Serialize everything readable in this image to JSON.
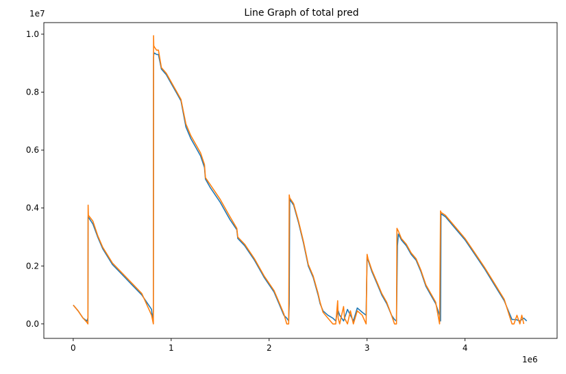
{
  "chart_data": {
    "type": "line",
    "title": "Line Graph of total pred",
    "xlabel": "",
    "ylabel": "",
    "x_offset_label": "1e6",
    "y_offset_label": "1e7",
    "xlim": [
      -300000,
      4940000
    ],
    "ylim": [
      -500000,
      10400000
    ],
    "x_ticks": [
      0,
      1000000,
      2000000,
      3000000,
      4000000
    ],
    "x_tick_labels": [
      "0",
      "1",
      "2",
      "3",
      "4"
    ],
    "y_ticks": [
      0,
      2000000,
      4000000,
      6000000,
      8000000,
      10000000
    ],
    "y_tick_labels": [
      "0.0",
      "0.2",
      "0.4",
      "0.6",
      "0.8",
      "1.0"
    ],
    "grid": false,
    "series": [
      {
        "color": "#1f77b4",
        "x": [
          0,
          50000,
          100000,
          140000,
          150000,
          152000,
          200000,
          250000,
          300000,
          400000,
          500000,
          600000,
          700000,
          800000,
          805000,
          810000,
          818000,
          820000,
          822000,
          830000,
          850000,
          870000,
          900000,
          950000,
          1000000,
          1050000,
          1100000,
          1150000,
          1200000,
          1250000,
          1300000,
          1340000,
          1350000,
          1400000,
          1500000,
          1600000,
          1670000,
          1680000,
          1750000,
          1850000,
          1950000,
          2050000,
          2100000,
          2150000,
          2180000,
          2200000,
          2205000,
          2210000,
          2250000,
          2300000,
          2350000,
          2400000,
          2450000,
          2500000,
          2520000,
          2550000,
          2600000,
          2650000,
          2680000,
          2700000,
          2720000,
          2760000,
          2800000,
          2830000,
          2860000,
          2900000,
          2950000,
          2990000,
          3000000,
          3020000,
          3050000,
          3100000,
          3150000,
          3200000,
          3250000,
          3280000,
          3300000,
          3310000,
          3320000,
          3350000,
          3400000,
          3450000,
          3500000,
          3550000,
          3600000,
          3650000,
          3700000,
          3740000,
          3750000,
          3755000,
          3800000,
          3900000,
          4000000,
          4100000,
          4200000,
          4300000,
          4400000,
          4480000,
          4520000,
          4560000,
          4600000,
          4630000
        ],
        "values": [
          650000,
          450000,
          200000,
          100000,
          200000,
          3700000,
          3450000,
          3000000,
          2600000,
          2050000,
          1700000,
          1350000,
          1000000,
          500000,
          300000,
          200000,
          400000,
          9200000,
          9300000,
          9350000,
          9300000,
          9300000,
          8800000,
          8600000,
          8300000,
          8000000,
          7700000,
          6800000,
          6400000,
          6100000,
          5800000,
          5400000,
          5000000,
          4700000,
          4200000,
          3600000,
          3250000,
          2950000,
          2700000,
          2200000,
          1600000,
          1100000,
          700000,
          300000,
          200000,
          100000,
          700000,
          4300000,
          4100000,
          3500000,
          2800000,
          2000000,
          1600000,
          1000000,
          700000,
          450000,
          300000,
          200000,
          100000,
          500000,
          300000,
          100000,
          500000,
          300000,
          100000,
          550000,
          400000,
          300000,
          2300000,
          2100000,
          1800000,
          1400000,
          1000000,
          700000,
          300000,
          150000,
          100000,
          2700000,
          3100000,
          2900000,
          2700000,
          2400000,
          2200000,
          1800000,
          1300000,
          1000000,
          700000,
          300000,
          100000,
          3800000,
          3700000,
          3300000,
          2900000,
          2400000,
          1900000,
          1350000,
          800000,
          150000,
          150000,
          100000,
          200000,
          100000
        ]
      },
      {
        "color": "#ff7f0e",
        "x": [
          0,
          50000,
          100000,
          140000,
          150000,
          152000,
          155000,
          200000,
          250000,
          300000,
          400000,
          500000,
          600000,
          700000,
          800000,
          818000,
          820000,
          822000,
          830000,
          850000,
          870000,
          900000,
          950000,
          1000000,
          1050000,
          1100000,
          1150000,
          1200000,
          1250000,
          1300000,
          1340000,
          1350000,
          1400000,
          1500000,
          1600000,
          1670000,
          1680000,
          1750000,
          1850000,
          1950000,
          2050000,
          2100000,
          2150000,
          2180000,
          2200000,
          2205000,
          2210000,
          2250000,
          2300000,
          2350000,
          2400000,
          2450000,
          2500000,
          2520000,
          2550000,
          2600000,
          2650000,
          2680000,
          2700000,
          2705000,
          2720000,
          2760000,
          2770000,
          2800000,
          2830000,
          2860000,
          2900000,
          2950000,
          2990000,
          3000000,
          3010000,
          3050000,
          3100000,
          3150000,
          3200000,
          3250000,
          3280000,
          3300000,
          3305000,
          3320000,
          3350000,
          3400000,
          3450000,
          3500000,
          3550000,
          3600000,
          3650000,
          3700000,
          3740000,
          3750000,
          3755000,
          3800000,
          3900000,
          4000000,
          4100000,
          4200000,
          4300000,
          4400000,
          4480000,
          4500000,
          4530000,
          4560000,
          4580000,
          4600000
        ],
        "values": [
          650000,
          450000,
          200000,
          50000,
          0,
          4100000,
          3750000,
          3550000,
          3050000,
          2650000,
          2100000,
          1750000,
          1400000,
          1050000,
          300000,
          0,
          9950000,
          9600000,
          9550000,
          9450000,
          9450000,
          8850000,
          8650000,
          8350000,
          8050000,
          7750000,
          6900000,
          6500000,
          6200000,
          5900000,
          5500000,
          5050000,
          4800000,
          4300000,
          3700000,
          3300000,
          3000000,
          2750000,
          2250000,
          1650000,
          1150000,
          750000,
          350000,
          0,
          0,
          4450000,
          4350000,
          4150000,
          3550000,
          2850000,
          2050000,
          1650000,
          1050000,
          750000,
          400000,
          200000,
          0,
          0,
          800000,
          200000,
          0,
          600000,
          200000,
          0,
          450000,
          0,
          450000,
          300000,
          0,
          2400000,
          2250000,
          1850000,
          1450000,
          1050000,
          750000,
          300000,
          0,
          0,
          3300000,
          3200000,
          2950000,
          2750000,
          2450000,
          2250000,
          1850000,
          1350000,
          1050000,
          750000,
          0,
          3900000,
          3850000,
          3750000,
          3350000,
          2950000,
          2450000,
          1950000,
          1400000,
          850000,
          0,
          0,
          300000,
          0,
          300000,
          0
        ]
      }
    ]
  }
}
